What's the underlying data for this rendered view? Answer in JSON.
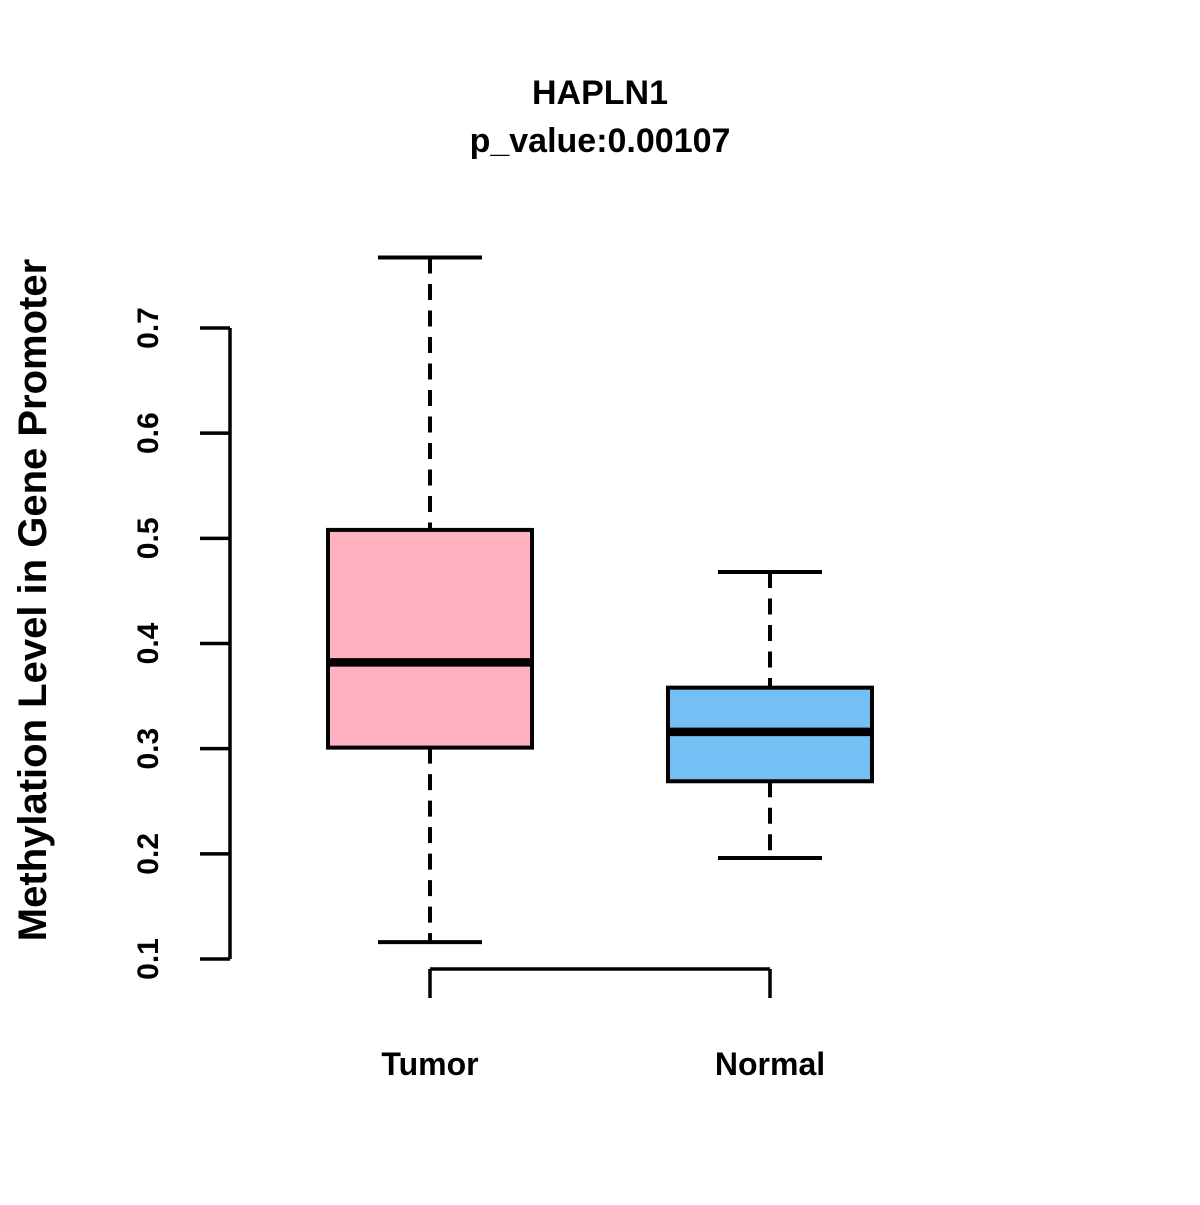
{
  "chart_data": {
    "type": "boxplot",
    "title": "HAPLN1",
    "subtitle": "p_value:0.00107",
    "ylabel": "Methylation Level in Gene Promoter",
    "xlabel": "",
    "categories": [
      "Tumor",
      "Normal"
    ],
    "yticks": [
      0.1,
      0.2,
      0.3,
      0.4,
      0.5,
      0.6,
      0.7
    ],
    "ylim": [
      0.09,
      0.79
    ],
    "grid": false,
    "legend_position": "none",
    "whisker_style": "dashed",
    "box_border_color": "#000000",
    "median_color": "#000000",
    "axis_color": "#000000",
    "background_color": "#ffffff",
    "series": [
      {
        "name": "Tumor",
        "color": "#FFB1C1",
        "lower_whisker": 0.116,
        "q1": 0.301,
        "median": 0.382,
        "q3": 0.508,
        "upper_whisker": 0.767
      },
      {
        "name": "Normal",
        "color": "#74BFF4",
        "lower_whisker": 0.196,
        "q1": 0.269,
        "median": 0.316,
        "q3": 0.358,
        "upper_whisker": 0.468
      }
    ]
  }
}
